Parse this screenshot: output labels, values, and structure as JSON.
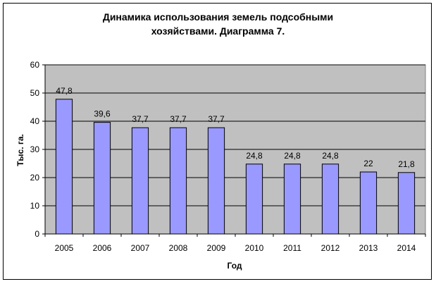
{
  "chart_data": {
    "type": "bar",
    "title_line1": "Динамика использования земель подсобными",
    "title_line2": "хозяйствами. Диаграмма 7.",
    "xlabel": "Год",
    "ylabel": "Тыс. га.",
    "ylim": [
      0,
      60
    ],
    "yticks": [
      "0",
      "10",
      "20",
      "30",
      "40",
      "50",
      "60"
    ],
    "categories": [
      "2005",
      "2006",
      "2007",
      "2008",
      "2009",
      "2010",
      "2011",
      "2012",
      "2013",
      "2014"
    ],
    "values": [
      47.8,
      39.6,
      37.7,
      37.7,
      37.7,
      24.8,
      24.8,
      24.8,
      22,
      21.8
    ],
    "value_labels": [
      "47,8",
      "39,6",
      "37,7",
      "37,7",
      "37,7",
      "24,8",
      "24,8",
      "24,8",
      "22",
      "21,8"
    ],
    "grid": true,
    "legend": "none",
    "colors": {
      "plot_bg": "#c0c0c0",
      "bar": "#9999ff",
      "bar_border": "#000000"
    }
  }
}
